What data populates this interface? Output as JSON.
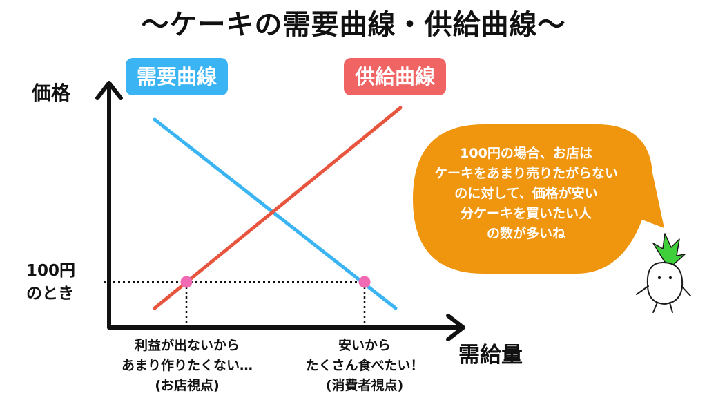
{
  "title": "〜ケーキの需要曲線・供給曲線〜",
  "curves": {
    "demand_label": "需要曲線",
    "supply_label": "供給曲線",
    "demand_color": "#3ab4f2",
    "supply_color": "#e8553f"
  },
  "axes": {
    "y_label": "価格",
    "x_label": "需給量"
  },
  "price_note": {
    "line1": "100円",
    "line2": "のとき"
  },
  "captions": {
    "supplier": {
      "line1": "利益が出ないから",
      "line2": "あまり作りたくない…",
      "line3": "(お店視点)"
    },
    "consumer": {
      "line1": "安いから",
      "line2": "たくさん食べたい！",
      "line3": "(消費者視点)"
    }
  },
  "speech_bubble": {
    "color": "#f0950e",
    "lines": [
      "100円の場合、お店は",
      "ケーキをあまり売りたがらない",
      "のに対して、価格が安い",
      "分ケーキを買いたい人",
      "の数が多いね"
    ]
  },
  "markers": {
    "color": "#f06ab4"
  },
  "mascot": {
    "leaf_color": "#3fcf3a",
    "icon": "turnip-mascot-icon"
  }
}
